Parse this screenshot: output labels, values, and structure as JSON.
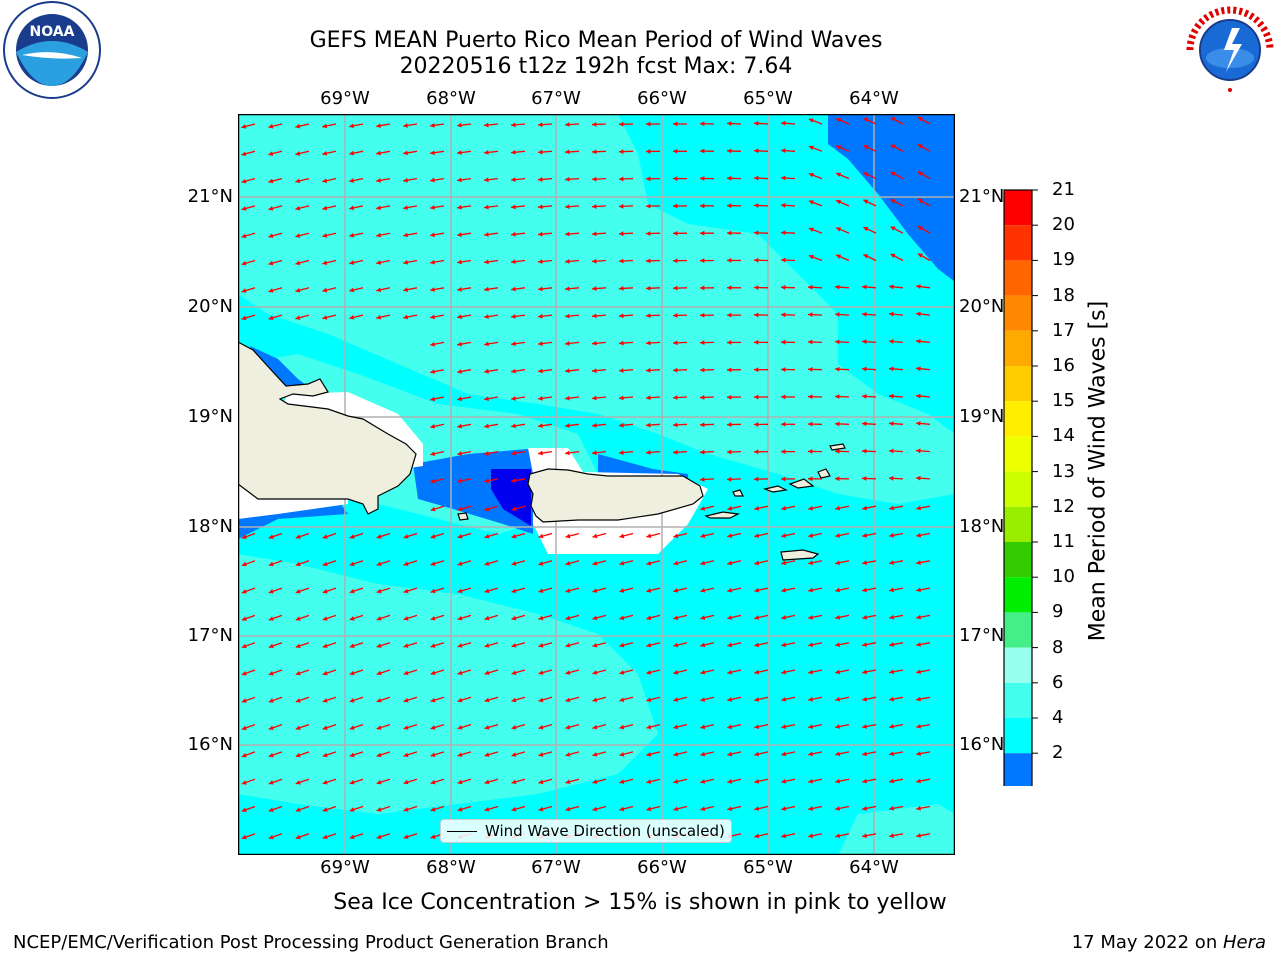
{
  "header": {
    "title_line1": "GEFS MEAN Puerto Rico Mean Period of Wind Waves",
    "title_line2": "20220516 t12z 192h fcst   Max: 7.64"
  },
  "logos": {
    "left": {
      "name": "noaa-logo",
      "text": "NOAA"
    },
    "right": {
      "name": "nws-logo",
      "text": "NATIONAL WEATHER SERVICE"
    }
  },
  "map": {
    "lon_labels": [
      "69°W",
      "68°W",
      "67°W",
      "66°W",
      "65°W",
      "64°W"
    ],
    "lat_labels": [
      "21°N",
      "20°N",
      "19°N",
      "18°N",
      "17°N",
      "16°N"
    ],
    "legend_label": "Wind Wave Direction (unscaled)"
  },
  "colorbar": {
    "label": "Mean Period of Wind Waves [s]",
    "ticks": [
      "21",
      "20",
      "19",
      "18",
      "17",
      "16",
      "15",
      "14",
      "13",
      "12",
      "11",
      "10",
      "9",
      "8",
      "6",
      "4",
      "2"
    ],
    "colors": [
      "#ff0000",
      "#ff3300",
      "#ff6600",
      "#ff8800",
      "#ffaa00",
      "#ffcc00",
      "#ffee00",
      "#eeff00",
      "#ccff00",
      "#99ee00",
      "#33cc00",
      "#00ee00",
      "#44ee88",
      "#99ffee",
      "#44ffee",
      "#00ffff",
      "#0077ff"
    ],
    "under_color": "#0000ee"
  },
  "palette": {
    "field_main": "#00ffff",
    "field_light": "#44ffee",
    "field_med": "#0077ff",
    "field_dark": "#0000ee",
    "land": "#efefe0",
    "arrow": "#ff0000"
  },
  "note": "Sea Ice Concentration > 15% is shown in pink to yellow",
  "footer": {
    "left": "NCEP/EMC/Verification Post Processing Product Generation Branch",
    "date": "17 May 2022 on ",
    "machine": "Hera"
  }
}
